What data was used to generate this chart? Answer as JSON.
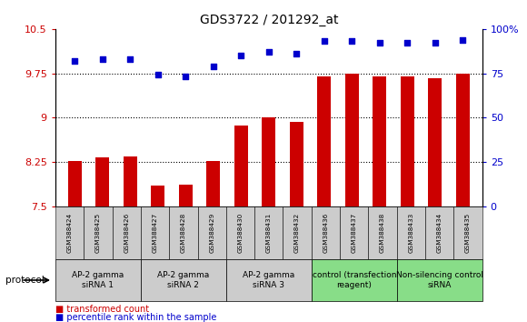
{
  "title": "GDS3722 / 201292_at",
  "samples": [
    "GSM388424",
    "GSM388425",
    "GSM388426",
    "GSM388427",
    "GSM388428",
    "GSM388429",
    "GSM388430",
    "GSM388431",
    "GSM388432",
    "GSM388436",
    "GSM388437",
    "GSM388438",
    "GSM388433",
    "GSM388434",
    "GSM388435"
  ],
  "bar_values": [
    8.26,
    8.32,
    8.34,
    7.85,
    7.86,
    8.26,
    8.87,
    9.0,
    8.92,
    9.69,
    9.74,
    9.69,
    9.69,
    9.66,
    9.75
  ],
  "dot_values": [
    82,
    83,
    83,
    74,
    73,
    79,
    85,
    87,
    86,
    93,
    93,
    92,
    92,
    92,
    94
  ],
  "bar_color": "#cc0000",
  "dot_color": "#0000cc",
  "ymin": 7.5,
  "ymax": 10.5,
  "yticks": [
    7.5,
    8.25,
    9.0,
    9.75,
    10.5
  ],
  "ytick_labels": [
    "7.5",
    "8.25",
    "9",
    "9.75",
    "10.5"
  ],
  "y2min": 0,
  "y2max": 100,
  "y2ticks": [
    0,
    25,
    50,
    75,
    100
  ],
  "y2tick_labels": [
    "0",
    "25",
    "50",
    "75",
    "100%"
  ],
  "gridlines": [
    8.25,
    9.0,
    9.75
  ],
  "groups": [
    {
      "label": "AP-2 gamma\nsiRNA 1",
      "start": 0,
      "end": 3,
      "color": "#cccccc"
    },
    {
      "label": "AP-2 gamma\nsiRNA 2",
      "start": 3,
      "end": 6,
      "color": "#cccccc"
    },
    {
      "label": "AP-2 gamma\nsiRNA 3",
      "start": 6,
      "end": 9,
      "color": "#cccccc"
    },
    {
      "label": "control (transfection\nreagent)",
      "start": 9,
      "end": 12,
      "color": "#88dd88"
    },
    {
      "label": "Non-silencing control\nsiRNA",
      "start": 12,
      "end": 15,
      "color": "#88dd88"
    }
  ],
  "protocol_label": "protocol",
  "legend1": "transformed count",
  "legend2": "percentile rank within the sample",
  "background_color": "#ffffff"
}
